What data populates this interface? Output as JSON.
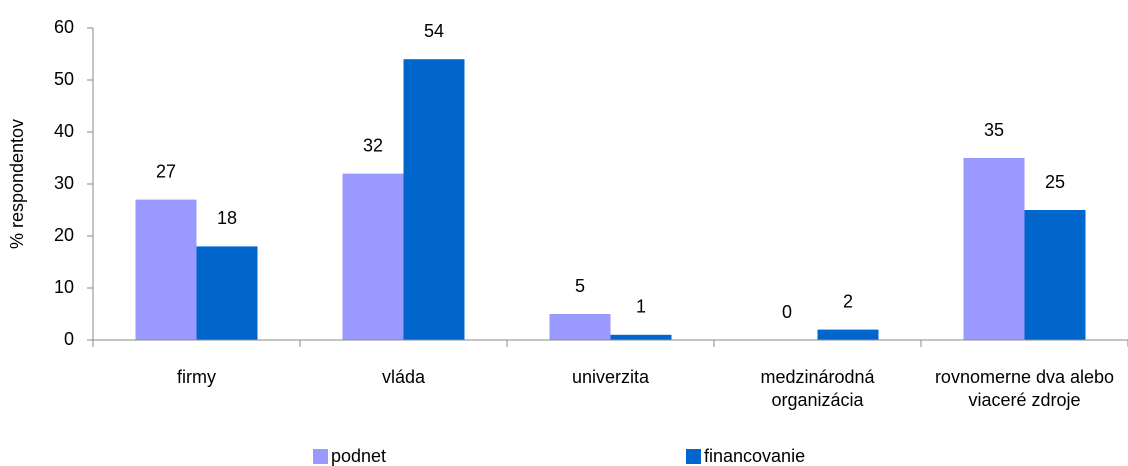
{
  "chart_data": {
    "type": "bar",
    "y_label": "% respondentov",
    "categories": [
      "firmy",
      "vláda",
      "univerzita",
      "medzinárodná organizácia",
      "rovnomerne dva alebo viaceré zdroje"
    ],
    "series": [
      {
        "name": "podnet",
        "color": "#9999ff",
        "values": [
          27,
          32,
          5,
          0,
          35
        ]
      },
      {
        "name": "financovanie",
        "color": "#0066cc",
        "values": [
          18,
          54,
          1,
          2,
          25
        ]
      }
    ],
    "ylim": [
      0,
      60
    ],
    "yticks": [
      0,
      10,
      20,
      30,
      40,
      50,
      60
    ],
    "grid": false,
    "legend": "bottom"
  }
}
